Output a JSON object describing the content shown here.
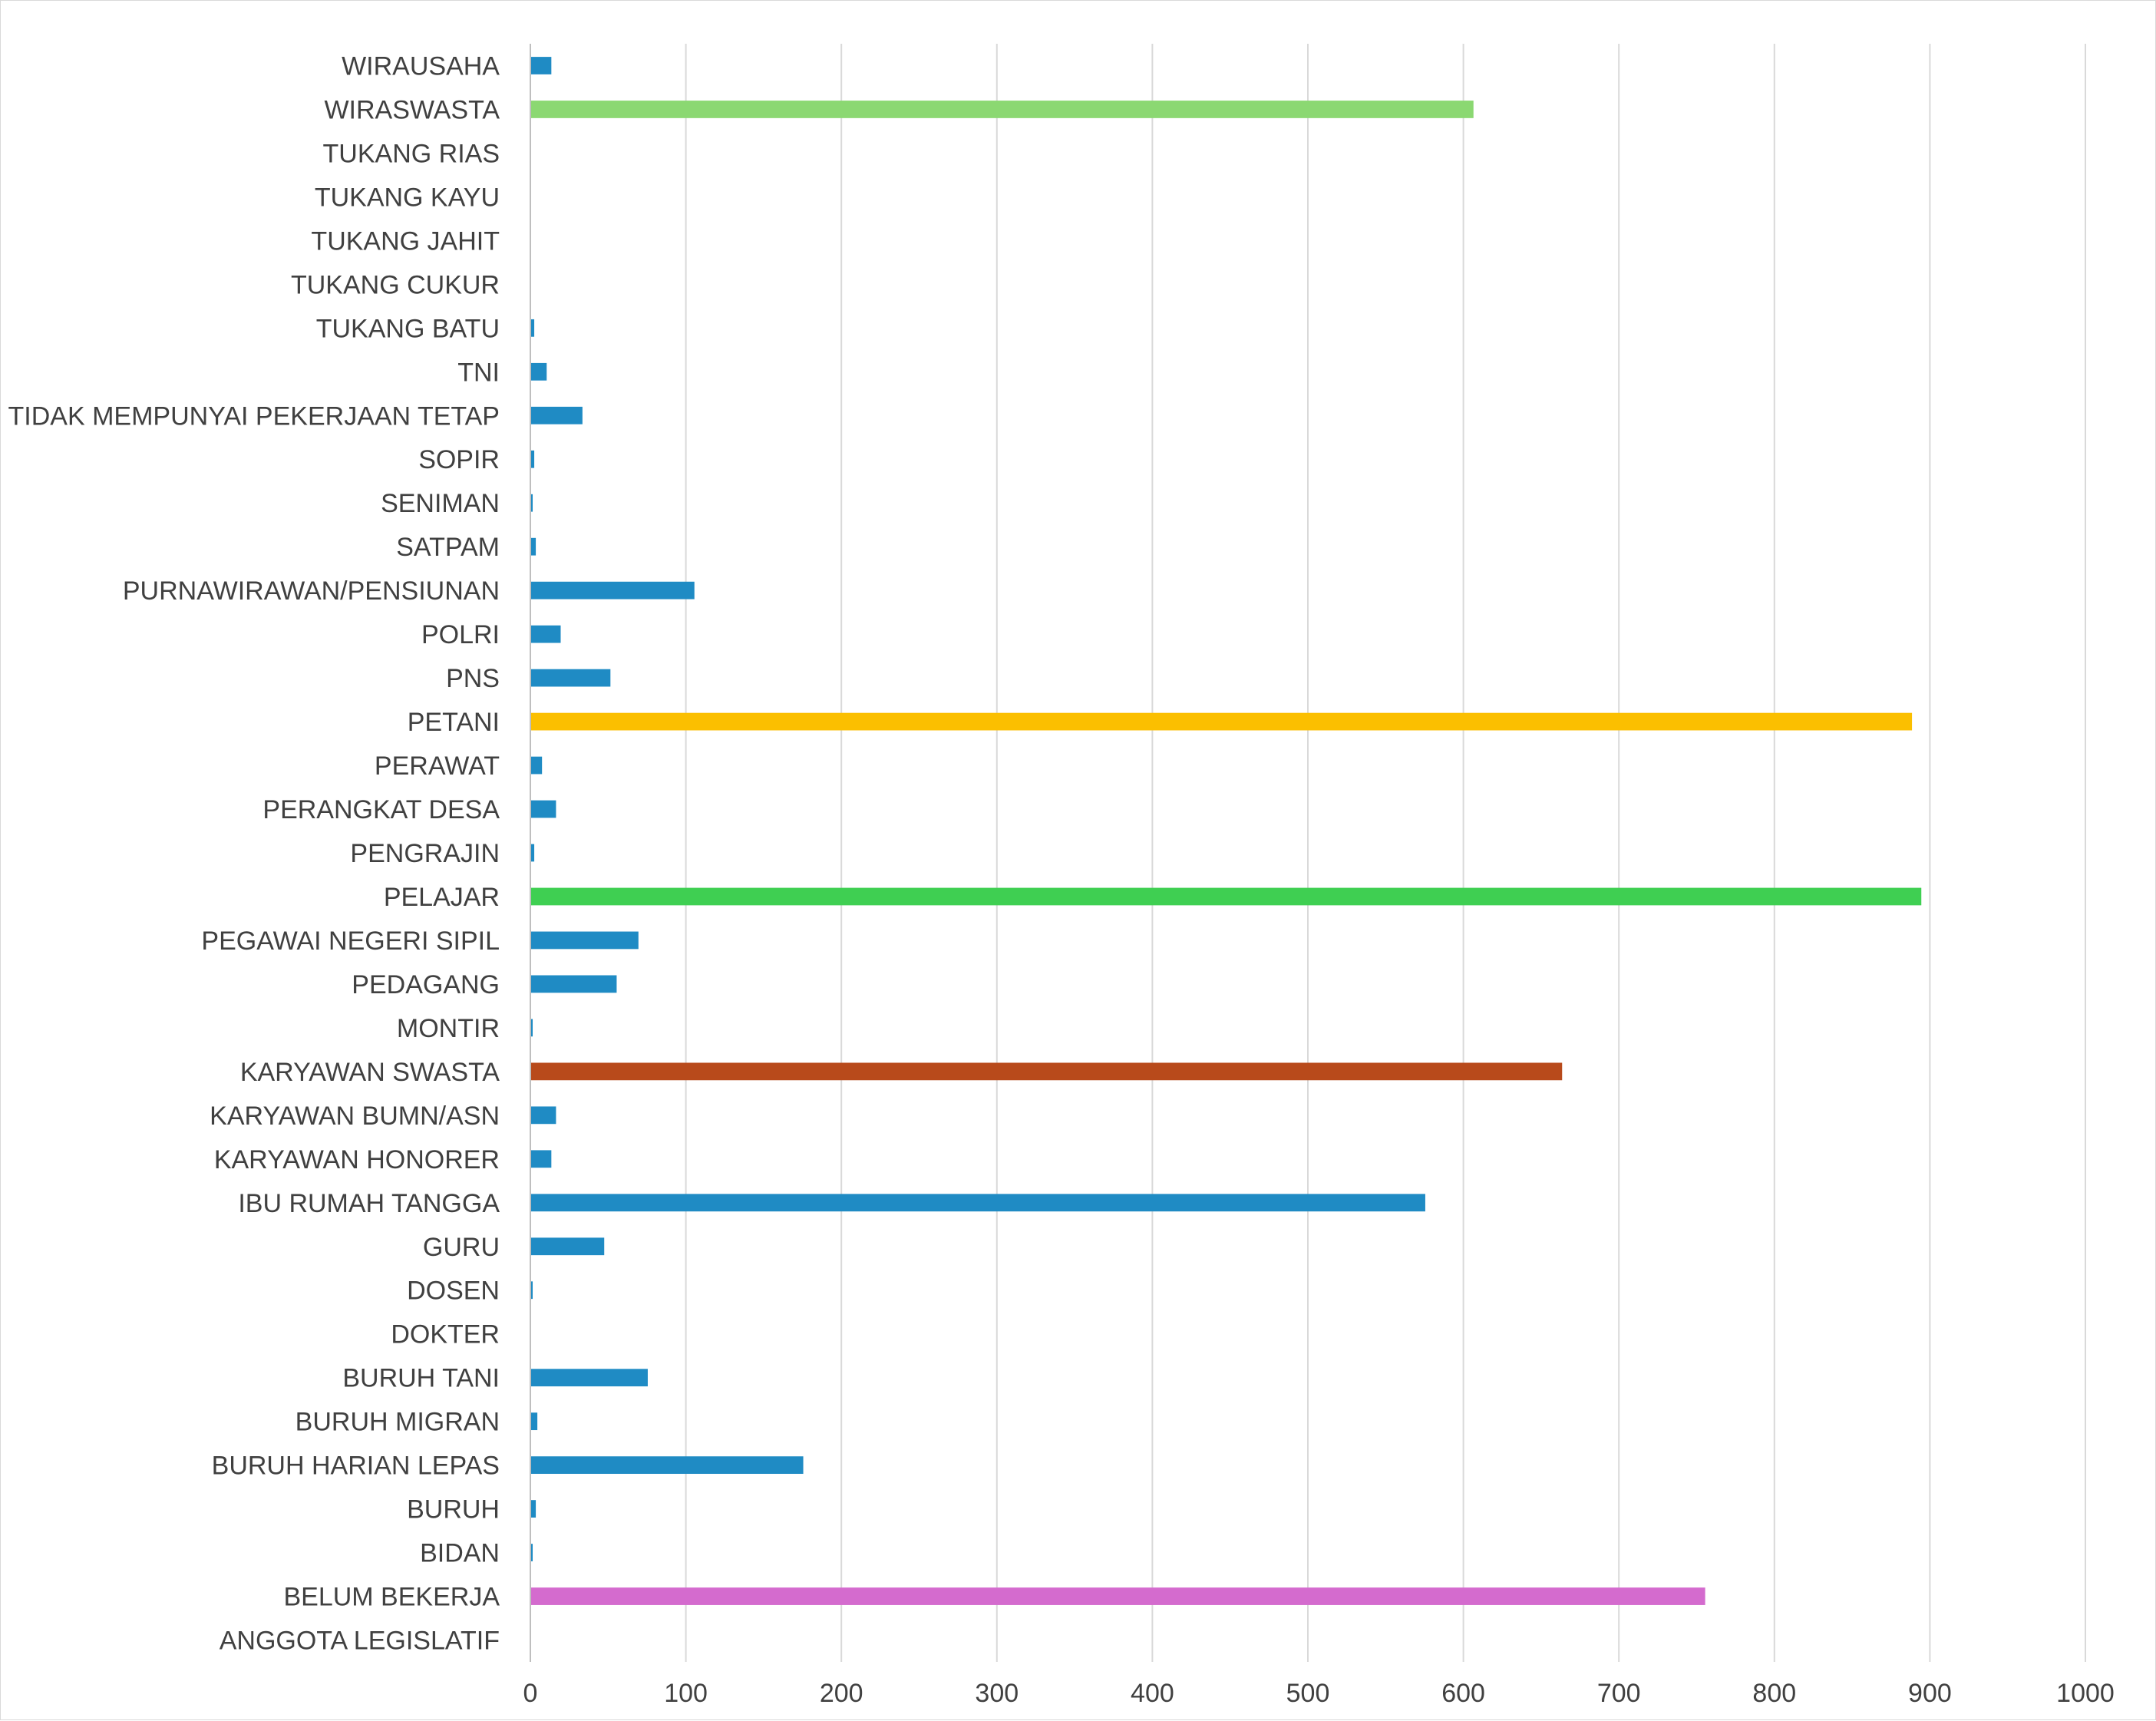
{
  "chart_data": {
    "type": "bar",
    "orientation": "horizontal",
    "title": "",
    "xlabel": "",
    "ylabel": "",
    "xlim": [
      0,
      1000
    ],
    "x_ticks": [
      0,
      100,
      200,
      300,
      400,
      500,
      600,
      700,
      800,
      900,
      1000
    ],
    "grid": "vertical",
    "legend": "none",
    "categories": [
      "ANGGOTA LEGISLATIF",
      "BELUM BEKERJA",
      "BIDAN",
      "BURUH",
      "BURUH HARIAN LEPAS",
      "BURUH MIGRAN",
      "BURUH TANI",
      "DOKTER",
      "DOSEN",
      "GURU",
      "IBU RUMAH TANGGA",
      "KARYAWAN HONORER",
      "KARYAWAN BUMN/ASN",
      "KARYAWAN SWASTA",
      "MONTIR",
      "PEDAGANG",
      "PEGAWAI NEGERI SIPIL",
      "PELAJAR",
      "PENGRAJIN",
      "PERANGKAT DESA",
      "PERAWAT",
      "PETANI",
      "PNS",
      "POLRI",
      "PURNAWIRAWAN/PENSIUNAN",
      "SATPAM",
      "SENIMAN",
      "SOPIR",
      "TIDAK MEMPUNYAI PEKERJAAN TETAP",
      "TNI",
      "TUKANG BATU",
      "TUKANG CUKUR",
      "TUKANG JAHIT",
      "TUKANG KAYU",
      "TUKANG RIAS",
      "WIRASWASTA",
      "WIRAUSAHA"
    ],
    "values": [
      0,
      755,
      1,
      3,
      175,
      4,
      75,
      0,
      1,
      47,
      575,
      13,
      16,
      663,
      1,
      55,
      69,
      894,
      2,
      16,
      7,
      888,
      51,
      19,
      105,
      3,
      1,
      2,
      33,
      10,
      2,
      0,
      0,
      0,
      0,
      606,
      13
    ],
    "colors": [
      "#1f8bc4",
      "#d46bce",
      "#1f8bc4",
      "#1f8bc4",
      "#1f8bc4",
      "#1f8bc4",
      "#1f8bc4",
      "#1f8bc4",
      "#1f8bc4",
      "#1f8bc4",
      "#1f8bc4",
      "#1f8bc4",
      "#1f8bc4",
      "#b84a1b",
      "#1f8bc4",
      "#1f8bc4",
      "#1f8bc4",
      "#3fcf52",
      "#1f8bc4",
      "#1f8bc4",
      "#1f8bc4",
      "#fbbf00",
      "#1f8bc4",
      "#1f8bc4",
      "#1f8bc4",
      "#1f8bc4",
      "#1f8bc4",
      "#1f8bc4",
      "#1f8bc4",
      "#1f8bc4",
      "#1f8bc4",
      "#1f8bc4",
      "#1f8bc4",
      "#1f8bc4",
      "#1f8bc4",
      "#8bd872",
      "#1f8bc4"
    ]
  }
}
